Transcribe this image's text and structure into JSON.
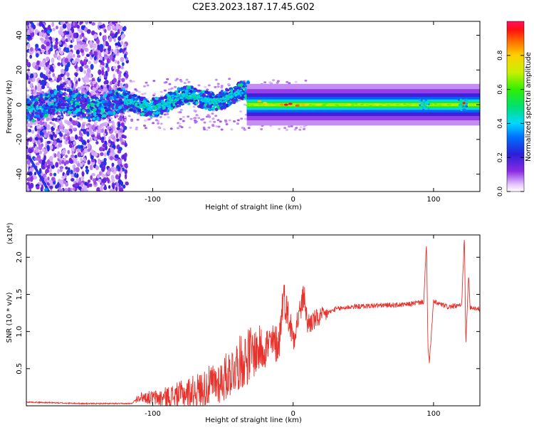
{
  "title": "C2E3.2023.187.17.45.G02",
  "colors": {
    "snr_line": "#e8322c",
    "background": "#ffffff",
    "axis": "#000000"
  },
  "chart_data": [
    {
      "type": "heatmap",
      "xlabel": "Height of straight line (km)",
      "ylabel": "Frequency (Hz)",
      "xlim": [
        -190,
        133
      ],
      "ylim": [
        -50,
        48
      ],
      "x_ticks": [
        -100,
        0,
        100
      ],
      "x_tick_labels": [
        "-100",
        "0",
        "100"
      ],
      "y_ticks": [
        -40,
        -20,
        0,
        20,
        40
      ],
      "y_tick_labels": [
        "-40",
        "-20",
        "0",
        "20",
        "40"
      ],
      "grid": false,
      "colorbar": {
        "label": "Normalized spectral amplitude",
        "range": [
          0,
          1
        ],
        "ticks": [
          0.0,
          0.2,
          0.4,
          0.6,
          0.8
        ],
        "tick_labels": [
          "0.0",
          "0.2",
          "0.4",
          "0.6",
          "0.8"
        ],
        "colormap": "hsv-reversed (purple at 0, red/pink at 1)"
      },
      "description_regions": [
        {
          "x_range": [
            -190,
            -120
          ],
          "freq_range": [
            -50,
            48
          ],
          "amplitude": "low (0.05-0.25)",
          "pattern": "scattered noise"
        },
        {
          "x_range": [
            -120,
            -35
          ],
          "freq_center": [
            0,
            8
          ],
          "amplitude": "0.2-0.6",
          "pattern": "drifting carrier band"
        },
        {
          "x_range": [
            -35,
            133
          ],
          "freq_center": 0,
          "amplitude": "0.5-1.0",
          "pattern": "steady carrier line"
        }
      ]
    },
    {
      "type": "line",
      "xlabel": "Height of straight line (km)",
      "ylabel": "SNR (10 * v/v)",
      "y_scale_label": "(x10⁴)",
      "xlim": [
        -190,
        133
      ],
      "ylim": [
        0,
        2.3
      ],
      "x_ticks": [
        -100,
        0,
        100
      ],
      "x_tick_labels": [
        "-100",
        "0",
        "100"
      ],
      "y_ticks": [
        0.5,
        1.0,
        1.5,
        2.0
      ],
      "y_tick_labels": [
        "0.5",
        "1.0",
        "1.5",
        "2.0"
      ],
      "grid": false,
      "series": [
        {
          "color": "#e8322c",
          "points": [
            [
              -190,
              0.05
            ],
            [
              -150,
              0.03
            ],
            [
              -115,
              0.03
            ],
            [
              -110,
              0.12
            ],
            [
              -95,
              0.1
            ],
            [
              -80,
              0.15
            ],
            [
              -65,
              0.22
            ],
            [
              -50,
              0.35
            ],
            [
              -40,
              0.55
            ],
            [
              -30,
              0.7
            ],
            [
              -20,
              0.8
            ],
            [
              -10,
              0.85
            ],
            [
              -7,
              1.5
            ],
            [
              0,
              0.92
            ],
            [
              8,
              1.5
            ],
            [
              10,
              1.1
            ],
            [
              20,
              1.2
            ],
            [
              30,
              1.3
            ],
            [
              40,
              1.33
            ],
            [
              60,
              1.35
            ],
            [
              80,
              1.36
            ],
            [
              93,
              1.4
            ],
            [
              95,
              2.2
            ],
            [
              96,
              0.8
            ],
            [
              97,
              0.58
            ],
            [
              100,
              1.4
            ],
            [
              110,
              1.33
            ],
            [
              120,
              1.35
            ],
            [
              122,
              2.3
            ],
            [
              123,
              0.8
            ],
            [
              125,
              1.8
            ],
            [
              126,
              1.33
            ],
            [
              133,
              1.3
            ]
          ]
        }
      ]
    }
  ]
}
